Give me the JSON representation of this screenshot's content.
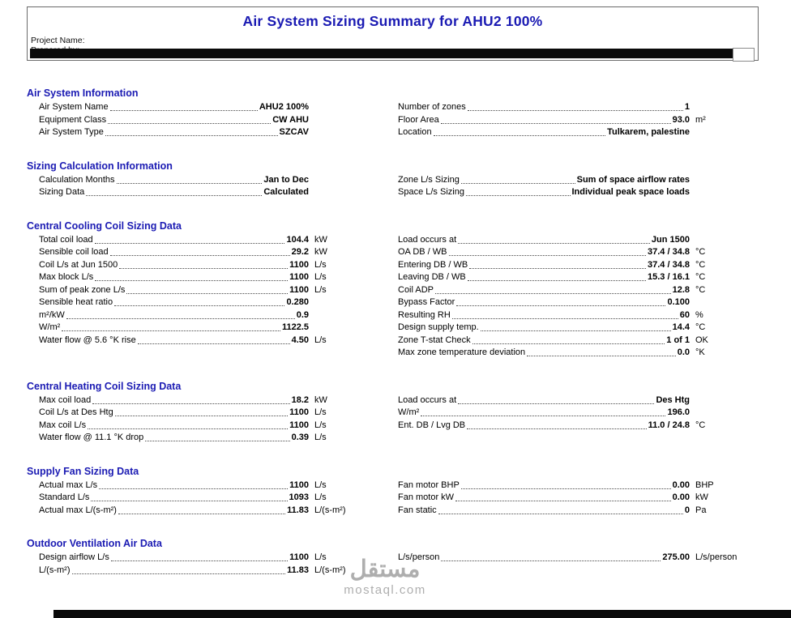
{
  "colors": {
    "accent_blue": "#1b1bb3",
    "bar_black": "#0a0a0a",
    "watermark_gray": "#9a9a9a"
  },
  "page": {
    "title": "Air System Sizing Summary for AHU2 100%",
    "project_name_label": "Project Name:",
    "prepared_by_label": "Prepared by:"
  },
  "watermark": {
    "arabic": "مستقل",
    "site": "mostaql.com"
  },
  "sections": [
    {
      "title": "Air System Information",
      "left": [
        {
          "label": "Air System Name",
          "value": "AHU2 100%",
          "unit": ""
        },
        {
          "label": "Equipment Class",
          "value": "CW AHU",
          "unit": ""
        },
        {
          "label": "Air System Type",
          "value": "SZCAV",
          "unit": ""
        }
      ],
      "right": [
        {
          "label": "Number of zones",
          "value": "1",
          "unit": ""
        },
        {
          "label": "Floor Area",
          "value": "93.0",
          "unit": "m²"
        },
        {
          "label": "Location",
          "value": "Tulkarem, palestine",
          "unit": ""
        }
      ]
    },
    {
      "title": "Sizing Calculation Information",
      "left": [
        {
          "label": "Calculation Months",
          "value": "Jan to Dec",
          "unit": ""
        },
        {
          "label": "Sizing Data",
          "value": "Calculated",
          "unit": ""
        }
      ],
      "right": [
        {
          "label": "Zone L/s Sizing",
          "value": "Sum of space airflow rates",
          "unit": ""
        },
        {
          "label": "Space L/s Sizing",
          "value": "Individual peak space loads",
          "unit": ""
        }
      ]
    },
    {
      "title": "Central Cooling Coil Sizing Data",
      "left": [
        {
          "label": "Total coil load",
          "value": "104.4",
          "unit": "kW"
        },
        {
          "label": "Sensible coil load",
          "value": "29.2",
          "unit": "kW"
        },
        {
          "label": "Coil L/s at Jun 1500",
          "value": "1100",
          "unit": "L/s"
        },
        {
          "label": "Max block L/s",
          "value": "1100",
          "unit": "L/s"
        },
        {
          "label": "Sum of peak zone L/s",
          "value": "1100",
          "unit": "L/s"
        },
        {
          "label": "Sensible heat ratio",
          "value": "0.280",
          "unit": ""
        },
        {
          "label": "m²/kW",
          "value": "0.9",
          "unit": ""
        },
        {
          "label": "W/m²",
          "value": "1122.5",
          "unit": ""
        },
        {
          "label": "Water flow @ 5.6 °K rise",
          "value": "4.50",
          "unit": "L/s"
        }
      ],
      "right": [
        {
          "label": "Load occurs at",
          "value": "Jun 1500",
          "unit": ""
        },
        {
          "label": "OA DB / WB",
          "value": "37.4 / 34.8",
          "unit": "°C"
        },
        {
          "label": "Entering DB / WB",
          "value": "37.4 / 34.8",
          "unit": "°C"
        },
        {
          "label": "Leaving DB / WB",
          "value": "15.3 / 16.1",
          "unit": "°C"
        },
        {
          "label": "Coil ADP",
          "value": "12.8",
          "unit": "°C"
        },
        {
          "label": "Bypass Factor",
          "value": "0.100",
          "unit": ""
        },
        {
          "label": "Resulting RH",
          "value": "60",
          "unit": "%"
        },
        {
          "label": "Design supply temp.",
          "value": "14.4",
          "unit": "°C"
        },
        {
          "label": "Zone T-stat Check",
          "value": "1 of 1",
          "unit": "OK"
        },
        {
          "label": "Max zone temperature deviation",
          "value": "0.0",
          "unit": "°K"
        }
      ]
    },
    {
      "title": "Central Heating Coil Sizing Data",
      "left": [
        {
          "label": "Max coil load",
          "value": "18.2",
          "unit": "kW"
        },
        {
          "label": "Coil L/s at Des Htg",
          "value": "1100",
          "unit": "L/s"
        },
        {
          "label": "Max coil L/s",
          "value": "1100",
          "unit": "L/s"
        },
        {
          "label": "Water flow @ 11.1 °K drop",
          "value": "0.39",
          "unit": "L/s"
        }
      ],
      "right": [
        {
          "label": "Load occurs at",
          "value": "Des Htg",
          "unit": ""
        },
        {
          "label": "W/m²",
          "value": "196.0",
          "unit": ""
        },
        {
          "label": "Ent. DB / Lvg DB",
          "value": "11.0 / 24.8",
          "unit": "°C"
        }
      ]
    },
    {
      "title": "Supply Fan Sizing Data",
      "left": [
        {
          "label": "Actual max L/s",
          "value": "1100",
          "unit": "L/s"
        },
        {
          "label": "Standard L/s",
          "value": "1093",
          "unit": "L/s"
        },
        {
          "label": "Actual max L/(s-m²)",
          "value": "11.83",
          "unit": "L/(s-m²)"
        }
      ],
      "right": [
        {
          "label": "Fan motor BHP",
          "value": "0.00",
          "unit": "BHP"
        },
        {
          "label": "Fan motor kW",
          "value": "0.00",
          "unit": "kW"
        },
        {
          "label": "Fan static",
          "value": "0",
          "unit": "Pa"
        }
      ]
    },
    {
      "title": "Outdoor Ventilation Air Data",
      "left": [
        {
          "label": "Design airflow L/s",
          "value": "1100",
          "unit": "L/s"
        },
        {
          "label": "L/(s-m²)",
          "value": "11.83",
          "unit": "L/(s-m²)"
        }
      ],
      "right": [
        {
          "label": "L/s/person",
          "value": "275.00",
          "unit": "L/s/person"
        }
      ]
    }
  ]
}
